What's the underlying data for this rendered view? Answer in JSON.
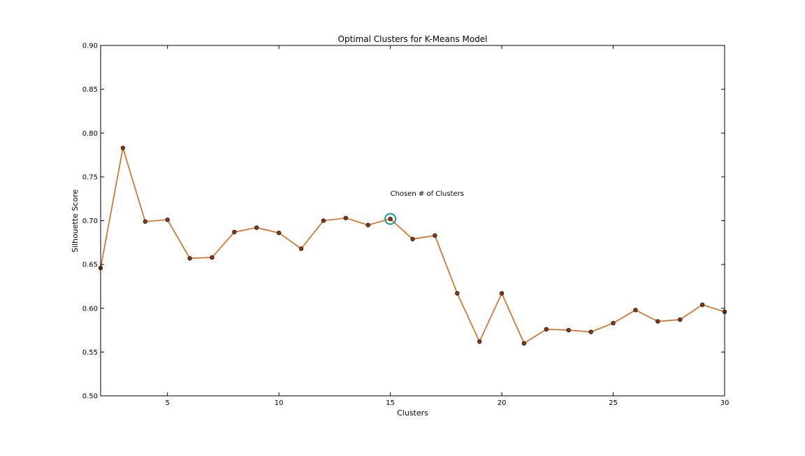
{
  "chart_data": {
    "type": "line",
    "title": "Optimal Clusters for K-Means Model",
    "xlabel": "Clusters",
    "ylabel": "Silhouette Score",
    "xlim": [
      2,
      30
    ],
    "ylim": [
      0.5,
      0.9
    ],
    "xticks": [
      5,
      10,
      15,
      20,
      25,
      30
    ],
    "xtick_labels": [
      "5",
      "10",
      "15",
      "20",
      "25",
      "30"
    ],
    "yticks": [
      0.5,
      0.55,
      0.6,
      0.65,
      0.7,
      0.75,
      0.8,
      0.85,
      0.9
    ],
    "ytick_labels": [
      "0.50",
      "0.55",
      "0.60",
      "0.65",
      "0.70",
      "0.75",
      "0.80",
      "0.85",
      "0.90"
    ],
    "grid": false,
    "line_color": "#d2691e",
    "marker_color": "#8b3a0f",
    "highlight_color": "#1a9e8a",
    "series": [
      {
        "x": [
          2,
          3,
          4,
          5,
          6,
          7,
          8,
          9,
          10,
          11,
          12,
          13,
          14,
          15,
          16,
          17,
          18,
          19,
          20,
          21,
          22,
          23,
          24,
          25,
          26,
          27,
          28,
          29,
          30
        ],
        "values": [
          0.646,
          0.783,
          0.699,
          0.701,
          0.657,
          0.658,
          0.687,
          0.692,
          0.686,
          0.668,
          0.7,
          0.703,
          0.695,
          0.702,
          0.679,
          0.683,
          0.617,
          0.562,
          0.617,
          0.56,
          0.576,
          0.575,
          0.573,
          0.583,
          0.598,
          0.585,
          0.587,
          0.604,
          0.596
        ]
      }
    ],
    "annotation": {
      "text": "Chosen # of Clusters",
      "x": 15,
      "y": 0.702
    }
  }
}
